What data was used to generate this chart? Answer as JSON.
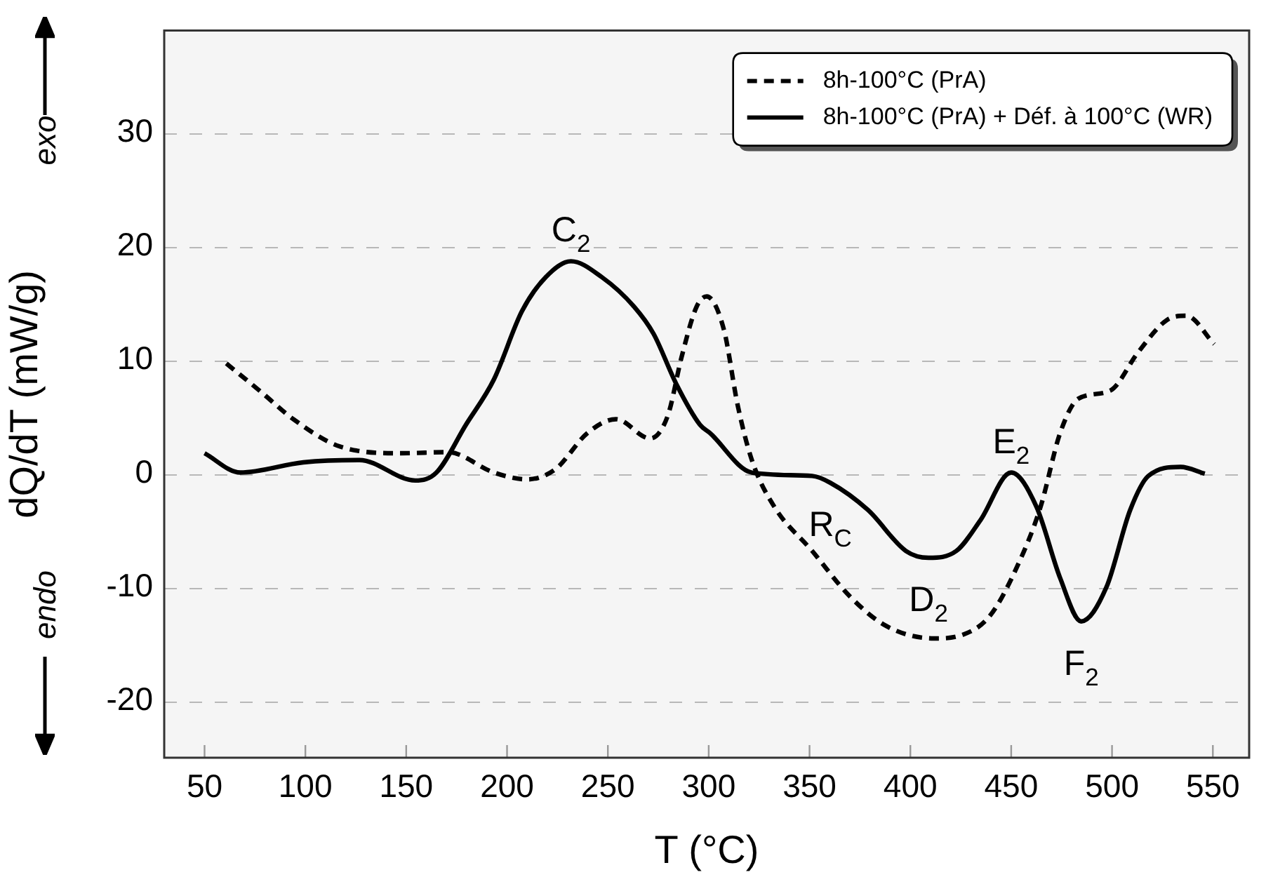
{
  "chart_data": {
    "type": "line",
    "xlabel": "T (°C)",
    "ylabel": "dQ/dT (mW/g)",
    "xlim": [
      30,
      568
    ],
    "xticks": [
      50,
      100,
      150,
      200,
      250,
      300,
      350,
      400,
      450,
      500,
      550
    ],
    "ylim": [
      -25,
      39
    ],
    "yticks": [
      -20,
      -10,
      0,
      10,
      20,
      30
    ],
    "grid": "y",
    "legend": "top right",
    "marker": "none",
    "series": [
      {
        "name": "8h-100°C (PrA)",
        "color": "#000000",
        "line_style": "dashed",
        "x": [
          60.8,
          78,
          94,
          117,
          147.6,
          170.6,
          193.5,
          210,
          224,
          240,
          254,
          271,
          279.7,
          286.6,
          294,
          299,
          307.5,
          314.4,
          321.4,
          332.5,
          351.3,
          370,
          388,
          411.7,
          425.6,
          439.5,
          453.4,
          464.6,
          474.3,
          483.3,
          499,
          513,
          527,
          536.8,
          550.7
        ],
        "values": [
          9.7,
          7.2,
          4.8,
          2.4,
          1.8,
          1.9,
          0.1,
          -0.5,
          0.4,
          3.6,
          4.8,
          3.1,
          5.1,
          10.3,
          14.7,
          15.6,
          12.7,
          6.0,
          1.2,
          -2.9,
          -6.8,
          -10.8,
          -13.4,
          -14.5,
          -14.2,
          -12.5,
          -8.0,
          -2.9,
          3.6,
          6.6,
          7.3,
          10.7,
          13.5,
          13.9,
          11.4
        ]
      },
      {
        "name": "8h-100°C (PrA) + Déf. à 100°C (WR)",
        "color": "#000000",
        "line_style": "solid",
        "x": [
          50,
          67.7,
          99,
          126.8,
          154.5,
          165,
          179.6,
          193.5,
          207.4,
          219.2,
          231.7,
          247,
          263,
          272.7,
          283.9,
          295.7,
          300.5,
          321.4,
          351.3,
          360.3,
          379,
          397.8,
          409,
          422.8,
          434.7,
          450,
          462.5,
          474.3,
          484.7,
          497.2,
          509,
          518,
          534,
          546
        ],
        "values": [
          1.8,
          0.1,
          1.0,
          1.2,
          -0.6,
          0.1,
          4.3,
          8.3,
          14.3,
          17.3,
          18.7,
          17.3,
          14.7,
          12.3,
          7.9,
          4.3,
          3.6,
          0.1,
          -0.2,
          -0.8,
          -3.2,
          -6.8,
          -7.4,
          -6.8,
          -4.1,
          0.1,
          -2.9,
          -9.2,
          -13.0,
          -10.0,
          -3.2,
          -0.2,
          0.6,
          0
        ]
      }
    ],
    "annotations": [
      {
        "text": "C$_{2}$",
        "x": 231.7,
        "y": 18.7
      },
      {
        "text": "R$_{C}$",
        "x": 360.3,
        "y": -0.8
      },
      {
        "text": "E$_{2}$",
        "x": 450,
        "y": 0.1
      },
      {
        "text": "D$_{2}$",
        "x": 409,
        "y": -7.4
      },
      {
        "text": "F$_{2}$",
        "x": 484.7,
        "y": -13.0
      },
      "exo",
      "endo"
    ]
  }
}
